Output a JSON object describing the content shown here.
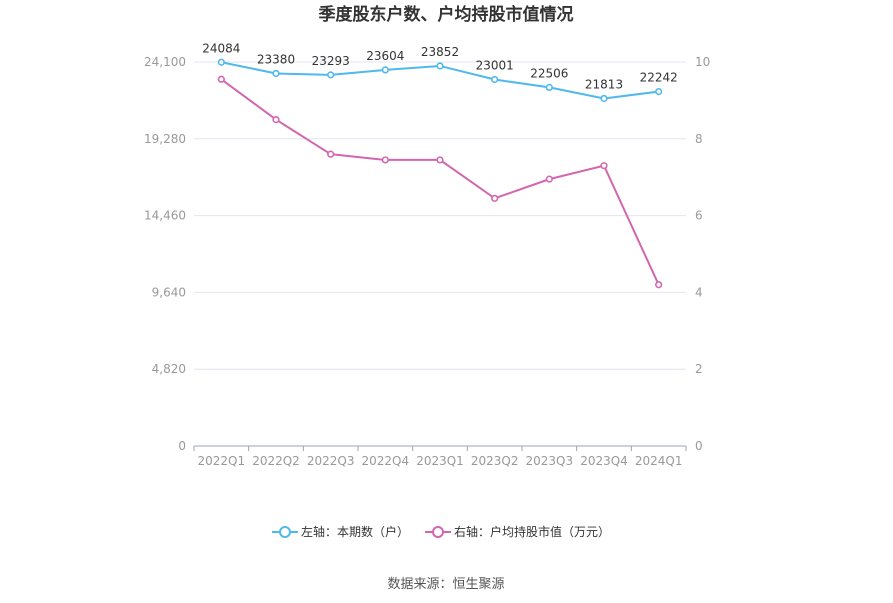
{
  "chart_data": {
    "type": "line",
    "title": "季度股东户数、户均持股市值情况",
    "categories": [
      "2022Q1",
      "2022Q2",
      "2022Q3",
      "2022Q4",
      "2023Q1",
      "2023Q2",
      "2023Q3",
      "2023Q4",
      "2024Q1"
    ],
    "series": [
      {
        "name": "左轴：本期数（户）",
        "axis": "left",
        "color": "#4fb8ee",
        "values": [
          24084,
          23380,
          23293,
          23604,
          23852,
          23001,
          22506,
          21813,
          22242
        ],
        "data_labels": [
          "24084",
          "23380",
          "23293",
          "23604",
          "23852",
          "23001",
          "22506",
          "21813",
          "22242"
        ]
      },
      {
        "name": "右轴：户均持股市值（万元）",
        "axis": "right",
        "color": "#d366ae",
        "values": [
          9.55,
          8.5,
          7.6,
          7.45,
          7.45,
          6.45,
          6.95,
          7.3,
          4.2
        ]
      }
    ],
    "y_left": {
      "ylim": [
        0,
        24100
      ],
      "ticks": [
        "0",
        "4,820",
        "9,640",
        "14,460",
        "19,280",
        "24,100"
      ]
    },
    "y_right": {
      "ylim": [
        0,
        10
      ],
      "ticks": [
        "0",
        "2",
        "4",
        "6",
        "8",
        "10"
      ]
    },
    "grid": true,
    "legend_position": "bottom"
  },
  "source": "数据来源：恒生聚源"
}
